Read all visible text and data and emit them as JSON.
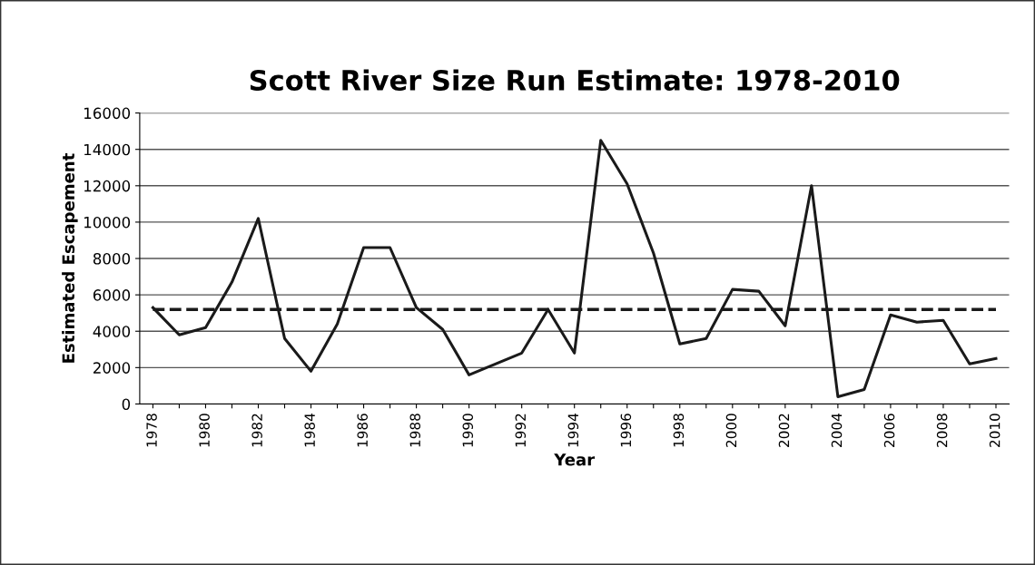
{
  "chart_data": {
    "type": "line",
    "title": "Scott River Size Run Estimate: 1978-2010",
    "xlabel": "Year",
    "ylabel": "Estimated Escapement",
    "categories": [
      "1978",
      null,
      "1980",
      null,
      "1982",
      null,
      "1984",
      null,
      "1986",
      null,
      "1988",
      null,
      "1990",
      null,
      "1992",
      null,
      "1994",
      null,
      "1996",
      null,
      "1998",
      null,
      "2000",
      null,
      "2002",
      null,
      "2004",
      null,
      "2006",
      null,
      "2008",
      null,
      "2010"
    ],
    "series": [
      {
        "color": "#1a1a1a",
        "values": [
          5300,
          3800,
          4200,
          6700,
          10200,
          3600,
          1800,
          4400,
          8600,
          8600,
          5300,
          4100,
          1600,
          2200,
          2800,
          5200,
          2800,
          14500,
          12100,
          8300,
          3300,
          3600,
          6300,
          6200,
          4300,
          12000,
          400,
          800,
          4900,
          4500,
          4600,
          2200,
          2500
        ]
      }
    ],
    "ylim": [
      0,
      16000
    ],
    "yticks": [
      0,
      2000,
      4000,
      6000,
      8000,
      10000,
      12000,
      14000,
      16000
    ],
    "ref_lines": [
      {
        "axis": "y",
        "value": 5200,
        "label": null,
        "color": "#1a1a1a",
        "line_style": "dashed"
      }
    ],
    "grid": "y",
    "marker": "none",
    "line_style": "solid",
    "legend": false
  }
}
